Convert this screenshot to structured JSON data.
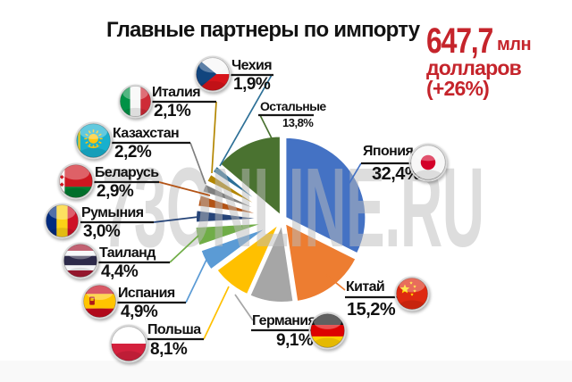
{
  "title": "Главные партнеры по импорту",
  "watermark": "73ONLINE.RU",
  "stat": {
    "value": "647,7",
    "unit": "млн",
    "line2": "долларов",
    "line3": "(+26%)",
    "color": "#c5242b"
  },
  "chart_data": {
    "type": "pie",
    "title": "Главные партнеры по импорту",
    "total_label": "647,7 млн долларов (+26%)",
    "unit": "%",
    "direction": "clockwise",
    "start_angle_deg": 0,
    "legend_position": "callout-labels-with-flags",
    "slices": [
      {
        "id": "japan",
        "label": "Япония",
        "value": 32.4,
        "pct": "32,4%",
        "color": "#4472C4",
        "flag_icon": "japan-flag-icon"
      },
      {
        "id": "china",
        "label": "Китай",
        "value": 15.2,
        "pct": "15,2%",
        "color": "#ED7D31",
        "flag_icon": "china-flag-icon"
      },
      {
        "id": "germany",
        "label": "Германия",
        "value": 9.1,
        "pct": "9,1%",
        "color": "#A6A6A6",
        "flag_icon": "germany-flag-icon"
      },
      {
        "id": "poland",
        "label": "Польша",
        "value": 8.1,
        "pct": "8,1%",
        "color": "#FFC000",
        "flag_icon": "poland-flag-icon"
      },
      {
        "id": "spain",
        "label": "Испания",
        "value": 4.9,
        "pct": "4,9%",
        "color": "#5B9BD5",
        "flag_icon": "spain-flag-icon"
      },
      {
        "id": "thailand",
        "label": "Таиланд",
        "value": 4.4,
        "pct": "4,4%",
        "color": "#70AD47",
        "flag_icon": "thailand-flag-icon"
      },
      {
        "id": "romania",
        "label": "Румыния",
        "value": 3.0,
        "pct": "3,0%",
        "color": "#264478",
        "flag_icon": "romania-flag-icon"
      },
      {
        "id": "belarus",
        "label": "Беларусь",
        "value": 2.9,
        "pct": "2,9%",
        "color": "#B35315",
        "flag_icon": "belarus-flag-icon"
      },
      {
        "id": "kazakhstan",
        "label": "Казахстан",
        "value": 2.2,
        "pct": "2,2%",
        "color": "#7F7F7F",
        "flag_icon": "kazakhstan-flag-icon"
      },
      {
        "id": "italy",
        "label": "Италия",
        "value": 2.1,
        "pct": "2,1%",
        "color": "#B38600",
        "flag_icon": "italy-flag-icon"
      },
      {
        "id": "czech",
        "label": "Чехия",
        "value": 1.9,
        "pct": "1,9%",
        "color": "#2D7097",
        "flag_icon": "czech-flag-icon"
      },
      {
        "id": "others",
        "label": "Остальные",
        "value": 13.8,
        "pct": "13,8%",
        "color": "#4A7230",
        "flag_icon": null
      }
    ]
  }
}
